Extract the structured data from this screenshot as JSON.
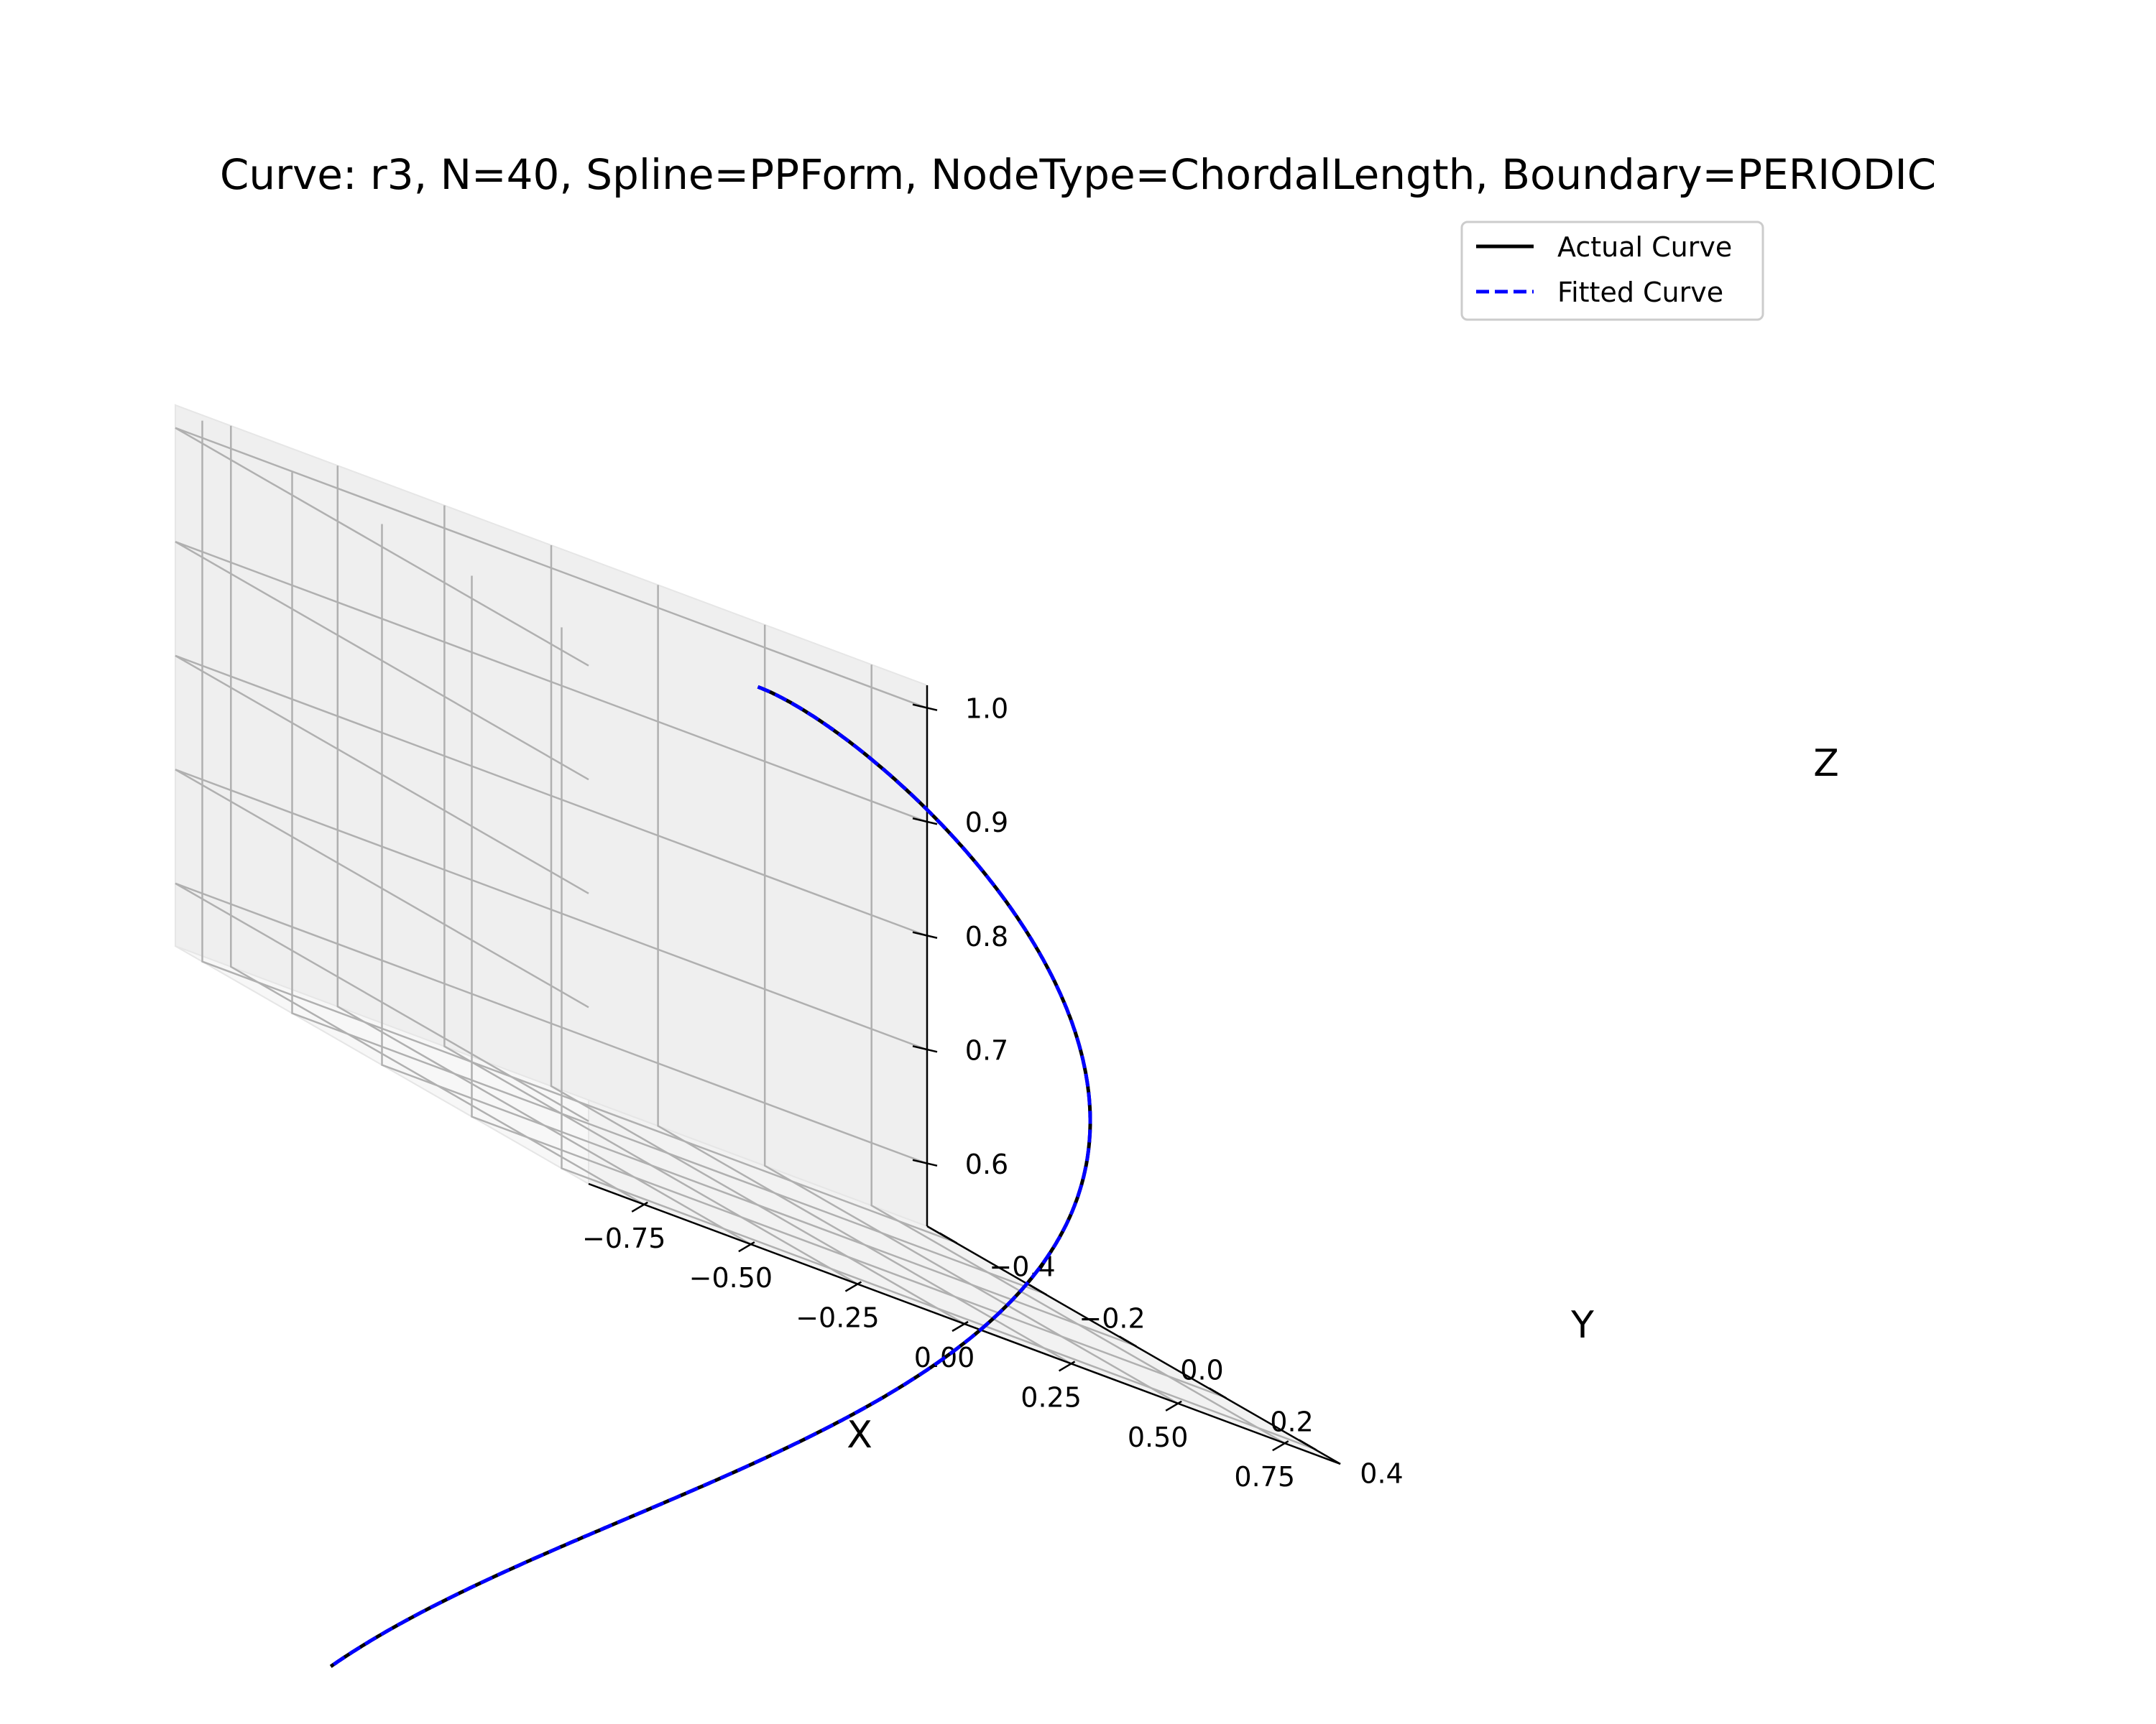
{
  "chart_data": {
    "type": "line",
    "title": "Curve: r3, N=40, Spline=PPForm, NodeType=ChordalLength, Boundary=PERIODIC",
    "xlabel": "X",
    "ylabel": "Y",
    "zlabel": "Z",
    "xlim": [
      -0.88,
      0.88
    ],
    "ylim": [
      -0.46,
      0.46
    ],
    "zlim": [
      0.545,
      1.02
    ],
    "x_ticks": [
      "−0.75",
      "−0.50",
      "−0.25",
      "0.00",
      "0.25",
      "0.50",
      "0.75"
    ],
    "y_ticks": [
      "−0.4",
      "−0.2",
      "0.0",
      "0.2",
      "0.4"
    ],
    "z_ticks": [
      "0.6",
      "0.7",
      "0.8",
      "0.9",
      "1.0"
    ],
    "x_tick_values": [
      -0.75,
      -0.5,
      -0.25,
      0,
      0.25,
      0.5,
      0.75
    ],
    "y_tick_values": [
      -0.4,
      -0.2,
      0,
      0.2,
      0.4
    ],
    "z_tick_values": [
      0.6,
      0.7,
      0.8,
      0.9,
      1.0
    ],
    "grid": true,
    "legend_position": "upper-right",
    "series": [
      {
        "name": "Actual Curve",
        "color": "#000000",
        "style": "solid",
        "parametric": "x=sin(t)cos(2t), y=sin(t)sin(2t), z=cos(t)"
      },
      {
        "name": "Fitted Curve",
        "color": "#0000ff",
        "style": "dashed",
        "parametric": "x=sin(t)cos(2t), y=sin(t)sin(2t), z=cos(t)"
      }
    ]
  }
}
